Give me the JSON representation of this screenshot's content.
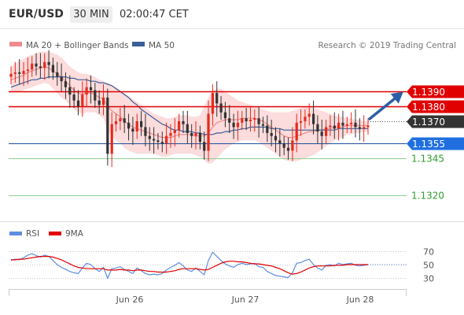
{
  "header": {
    "pair": "EUR/USD",
    "timeframe": "30 MIN",
    "time": "02:00:47 CET"
  },
  "legend": {
    "ma20_bb": "MA 20 + Bollinger Bands",
    "ma50": "MA 50",
    "credit": "Research © 2019 Trading Central",
    "rsi": "RSI",
    "ma9": "9MA"
  },
  "colors": {
    "up": "#e8291c",
    "down": "#333333",
    "band": "#fbd6d6",
    "ma20": "#f08c8c",
    "ma50": "#3a5f99",
    "resistance": "#e00000",
    "support_blue": "#1d4f9c",
    "support_green": "#2f9e2f",
    "rsi": "#5f8de0",
    "ma9": "#e00000",
    "arrow": "#2b5fa5"
  },
  "chart_data": [
    {
      "type": "candlestick",
      "y_axis_range": [
        1.1305,
        1.142
      ],
      "x_ticks": [
        "Jun 26",
        "Jun 27",
        "Jun 28"
      ],
      "levels": [
        {
          "label": "1.1390",
          "value": 1.139,
          "kind": "resistance",
          "style": "red-box"
        },
        {
          "label": "1.1380",
          "value": 1.138,
          "kind": "resistance",
          "style": "red-box"
        },
        {
          "label": "1.1370",
          "value": 1.137,
          "kind": "pivot",
          "style": "dark-box"
        },
        {
          "label": "1.1355",
          "value": 1.1355,
          "kind": "support",
          "style": "blue-box"
        },
        {
          "label": "1.1345",
          "value": 1.1345,
          "kind": "support",
          "style": "green-text"
        },
        {
          "label": "1.1320",
          "value": 1.132,
          "kind": "support",
          "style": "green-text"
        }
      ],
      "close": [
        1.1402,
        1.1403,
        1.1402,
        1.1404,
        1.1405,
        1.1409,
        1.1407,
        1.1406,
        1.141,
        1.1408,
        1.1403,
        1.14,
        1.1397,
        1.1393,
        1.1388,
        1.1384,
        1.138,
        1.1388,
        1.1393,
        1.1391,
        1.1384,
        1.1381,
        1.1386,
        1.1348,
        1.1368,
        1.137,
        1.1372,
        1.1369,
        1.1365,
        1.1363,
        1.137,
        1.1366,
        1.136,
        1.1358,
        1.1357,
        1.1356,
        1.1355,
        1.136,
        1.1362,
        1.1364,
        1.137,
        1.1368,
        1.1362,
        1.136,
        1.1362,
        1.1356,
        1.135,
        1.1375,
        1.1389,
        1.1382,
        1.1376,
        1.1372,
        1.1369,
        1.1366,
        1.1369,
        1.1372,
        1.137,
        1.1371,
        1.1372,
        1.1368,
        1.1367,
        1.1362,
        1.136,
        1.1357,
        1.1355,
        1.1352,
        1.135,
        1.1357,
        1.1369,
        1.137,
        1.1373,
        1.1375,
        1.1368,
        1.1363,
        1.136,
        1.1366,
        1.1367,
        1.1365,
        1.1369,
        1.1367,
        1.1368,
        1.1369,
        1.1366,
        1.1365,
        1.1366,
        1.1367
      ],
      "ma20": [
        1.1398,
        1.1399,
        1.14,
        1.1401,
        1.1403,
        1.1404,
        1.1405,
        1.1406,
        1.1407,
        1.1406,
        1.1404,
        1.1402,
        1.14,
        1.1397,
        1.1394,
        1.1391,
        1.1389,
        1.1388,
        1.1389,
        1.1389,
        1.1388,
        1.1386,
        1.1385,
        1.138,
        1.1377,
        1.1375,
        1.1373,
        1.137,
        1.1368,
        1.1366,
        1.1365,
        1.1364,
        1.1363,
        1.1362,
        1.1361,
        1.136,
        1.1359,
        1.1359,
        1.1359,
        1.136,
        1.1361,
        1.1361,
        1.1361,
        1.1361,
        1.136,
        1.136,
        1.136,
        1.1362,
        1.1366,
        1.1369,
        1.137,
        1.1371,
        1.1371,
        1.1371,
        1.1371,
        1.1372,
        1.1372,
        1.1372,
        1.1372,
        1.1371,
        1.137,
        1.1368,
        1.1366,
        1.1364,
        1.1362,
        1.136,
        1.1359,
        1.1359,
        1.136,
        1.1361,
        1.1362,
        1.1363,
        1.1363,
        1.1364,
        1.1364,
        1.1365,
        1.1365,
        1.1366,
        1.1366,
        1.1366,
        1.1367,
        1.1367,
        1.1367,
        1.1367,
        1.1367,
        1.1367
      ],
      "bb_upper": [
        1.1407,
        1.1409,
        1.1411,
        1.1412,
        1.1414,
        1.1415,
        1.1416,
        1.1417,
        1.1417,
        1.1417,
        1.1416,
        1.1415,
        1.1413,
        1.141,
        1.1407,
        1.1405,
        1.1403,
        1.1402,
        1.1402,
        1.1401,
        1.14,
        1.1398,
        1.1397,
        1.1396,
        1.1394,
        1.1393,
        1.1391,
        1.1389,
        1.1387,
        1.1385,
        1.1383,
        1.1381,
        1.1379,
        1.1377,
        1.1375,
        1.1374,
        1.1373,
        1.1372,
        1.1372,
        1.1373,
        1.1374,
        1.1374,
        1.1374,
        1.1373,
        1.1373,
        1.1374,
        1.138,
        1.1386,
        1.1391,
        1.1392,
        1.1392,
        1.139,
        1.1388,
        1.1386,
        1.1384,
        1.1383,
        1.1382,
        1.1381,
        1.138,
        1.1379,
        1.1378,
        1.1377,
        1.1376,
        1.1376,
        1.1376,
        1.1376,
        1.1376,
        1.1377,
        1.1378,
        1.1379,
        1.138,
        1.138,
        1.1379,
        1.1378,
        1.1377,
        1.1376,
        1.1375,
        1.1374,
        1.1373,
        1.1373,
        1.1372,
        1.1372,
        1.1371,
        1.1371,
        1.137,
        1.137
      ],
      "bb_lower": [
        1.139,
        1.139,
        1.139,
        1.1391,
        1.1392,
        1.1393,
        1.1394,
        1.1395,
        1.1396,
        1.1395,
        1.1392,
        1.1389,
        1.1386,
        1.1384,
        1.1381,
        1.1378,
        1.1376,
        1.1375,
        1.1376,
        1.1376,
        1.1376,
        1.1374,
        1.1372,
        1.1364,
        1.136,
        1.1357,
        1.1355,
        1.1352,
        1.135,
        1.1349,
        1.1348,
        1.1348,
        1.1348,
        1.1348,
        1.1348,
        1.1347,
        1.1346,
        1.1346,
        1.1347,
        1.1348,
        1.1348,
        1.1348,
        1.1348,
        1.1348,
        1.1347,
        1.1346,
        1.1344,
        1.1341,
        1.1342,
        1.1345,
        1.1348,
        1.1351,
        1.1353,
        1.1355,
        1.1356,
        1.1357,
        1.1357,
        1.1357,
        1.1357,
        1.1356,
        1.1354,
        1.1352,
        1.135,
        1.1348,
        1.1346,
        1.1344,
        1.1343,
        1.1343,
        1.1343,
        1.1344,
        1.1345,
        1.1346,
        1.1347,
        1.1349,
        1.1351,
        1.1353,
        1.1355,
        1.1357,
        1.1358,
        1.1359,
        1.1361,
        1.1361,
        1.1362,
        1.1362,
        1.1363,
        1.1363
      ],
      "ma50": [
        1.1393,
        1.1394,
        1.1395,
        1.1396,
        1.1397,
        1.1398,
        1.1398,
        1.1399,
        1.1399,
        1.14,
        1.14,
        1.14,
        1.14,
        1.14,
        1.1399,
        1.1399,
        1.1398,
        1.1398,
        1.1398,
        1.1397,
        1.1397,
        1.1396,
        1.1396,
        1.1395,
        1.1394,
        1.1392,
        1.139,
        1.1388,
        1.1386,
        1.1383,
        1.1381,
        1.1378,
        1.1376,
        1.1374,
        1.1372,
        1.137,
        1.1368,
        1.1367,
        1.1365,
        1.1364,
        1.1364,
        1.1363,
        1.1363,
        1.1363,
        1.1362,
        1.1362,
        1.1361,
        1.1361,
        1.1361,
        1.1362,
        1.1362,
        1.1363,
        1.1363,
        1.1364,
        1.1364,
        1.1365,
        1.1365,
        1.1366,
        1.1366,
        1.1366,
        1.1366,
        1.1366,
        1.1365,
        1.1365,
        1.1365,
        1.1364,
        1.1364,
        1.1364,
        1.1364,
        1.1364,
        1.1364,
        1.1364,
        1.1364,
        1.1364,
        1.1364,
        1.1364,
        1.1364,
        1.1364,
        1.1365,
        1.1365,
        1.1365,
        1.1365,
        1.1365,
        1.1365,
        1.1365,
        1.1365
      ],
      "forecast_arrow": {
        "from": 1.137,
        "to": 1.139,
        "direction": "up"
      }
    },
    {
      "type": "line",
      "title": "RSI",
      "y_ticks": [
        70,
        50,
        30
      ],
      "y_range": [
        20,
        80
      ],
      "series": [
        {
          "name": "RSI",
          "values": [
            56,
            58,
            57,
            60,
            64,
            66,
            63,
            61,
            64,
            62,
            56,
            50,
            46,
            43,
            40,
            38,
            37,
            45,
            52,
            50,
            44,
            40,
            46,
            30,
            44,
            45,
            47,
            43,
            40,
            37,
            45,
            41,
            37,
            35,
            36,
            35,
            37,
            42,
            46,
            49,
            53,
            48,
            42,
            40,
            45,
            40,
            35,
            56,
            68,
            62,
            56,
            51,
            48,
            46,
            50,
            52,
            50,
            51,
            52,
            47,
            46,
            40,
            37,
            34,
            33,
            32,
            31,
            38,
            52,
            53,
            56,
            58,
            50,
            45,
            42,
            49,
            50,
            48,
            52,
            50,
            51,
            52,
            49,
            48,
            49,
            50
          ]
        },
        {
          "name": "9MA",
          "values": [
            57,
            57,
            58,
            58,
            59,
            60,
            61,
            62,
            62,
            62,
            61,
            59,
            57,
            54,
            51,
            48,
            46,
            45,
            44,
            44,
            44,
            44,
            44,
            42,
            42,
            42,
            43,
            42,
            42,
            41,
            42,
            42,
            41,
            40,
            40,
            39,
            39,
            39,
            40,
            41,
            43,
            44,
            44,
            44,
            44,
            43,
            42,
            43,
            46,
            49,
            52,
            54,
            55,
            55,
            54,
            54,
            53,
            52,
            51,
            51,
            50,
            49,
            48,
            46,
            44,
            41,
            38,
            36,
            37,
            39,
            42,
            45,
            47,
            48,
            48,
            48,
            48,
            49,
            49,
            49,
            50,
            50,
            50,
            50,
            50,
            50
          ]
        }
      ]
    }
  ]
}
